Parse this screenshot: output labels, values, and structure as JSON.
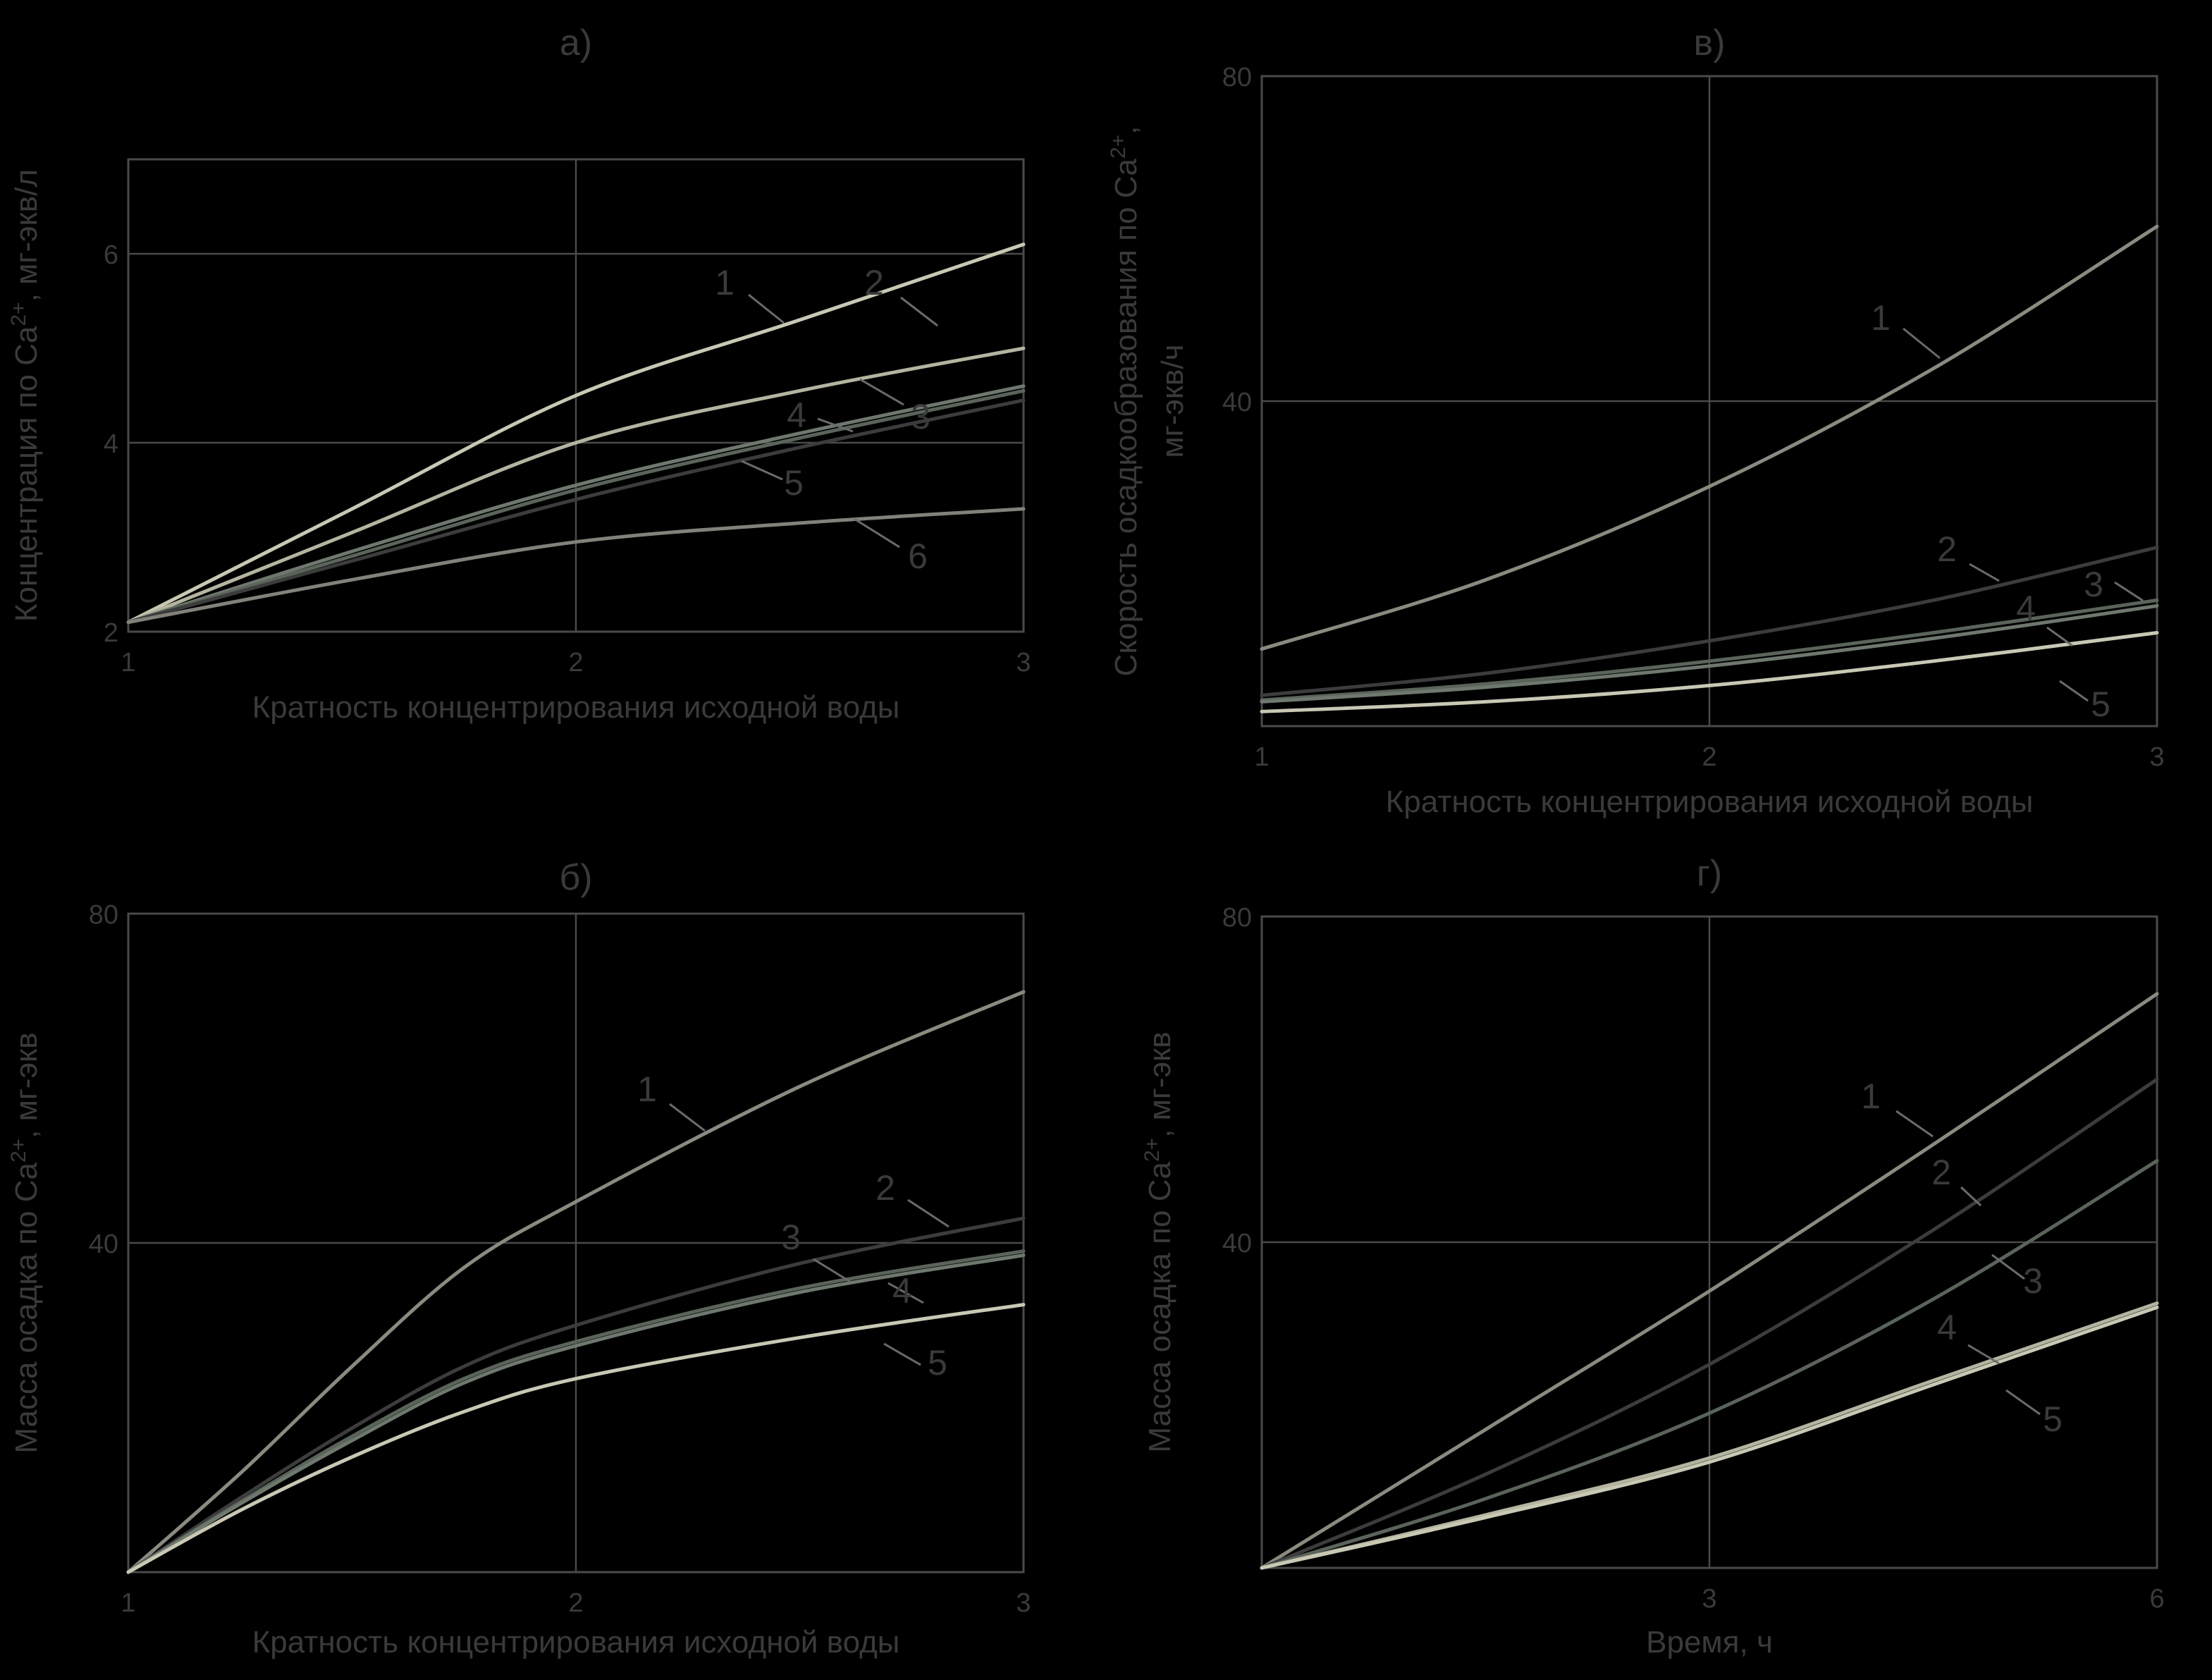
{
  "chart_data": [
    {
      "id": "a",
      "type": "line",
      "title": "а)",
      "xlabel": "Кратность концентрирования исходной воды",
      "ylabel": "Концентрация по Ca²⁺, мг-экв/л",
      "ylabel_parts": {
        "before": "Концентрация по Ca",
        "sup": "2+",
        "after": ", мг-экв/л"
      },
      "xlim": [
        1,
        3
      ],
      "ylim": [
        2,
        7
      ],
      "xticks": [
        1,
        2,
        3
      ],
      "xtick_labels": [
        "1",
        "2",
        "3"
      ],
      "yticks": [
        2,
        4,
        6
      ],
      "ytick_labels": [
        "2",
        "4",
        "6"
      ],
      "grid": true,
      "series": [
        {
          "name": "1",
          "color": "#c8c8b4",
          "x": [
            1,
            1.5,
            2,
            2.5,
            3
          ],
          "y": [
            2.1,
            3.3,
            4.5,
            5.3,
            6.1
          ]
        },
        {
          "name": "2",
          "color": "#b4b4a0",
          "x": [
            1,
            1.5,
            2,
            2.5,
            3
          ],
          "y": [
            2.1,
            3.05,
            4.0,
            4.55,
            5.0
          ]
        },
        {
          "name": "3",
          "color": "#6e786e",
          "x": [
            1,
            1.5,
            2,
            2.5,
            3
          ],
          "y": [
            2.1,
            2.85,
            3.55,
            4.1,
            4.6
          ]
        },
        {
          "name": "4",
          "color": "#5a645a",
          "x": [
            1,
            1.5,
            2,
            2.5,
            3
          ],
          "y": [
            2.1,
            2.8,
            3.5,
            4.05,
            4.55
          ]
        },
        {
          "name": "5",
          "color": "#3c3c3c",
          "x": [
            1,
            1.5,
            2,
            2.5,
            3
          ],
          "y": [
            2.1,
            2.75,
            3.4,
            3.95,
            4.45
          ]
        },
        {
          "name": "6",
          "color": "#82827a",
          "x": [
            1,
            1.5,
            2,
            2.5,
            3
          ],
          "y": [
            2.1,
            2.55,
            2.95,
            3.15,
            3.3
          ]
        }
      ]
    },
    {
      "id": "v",
      "type": "line",
      "title": "в)",
      "xlabel": "Кратность концентрирования исходной воды",
      "ylabel": "Скорость осадкообразования по Ca²⁺, мг-экв/ч",
      "ylabel_parts": {
        "before": "Скорость осадкообразования по Ca",
        "sup": "2+",
        "after": ",",
        "line2": "мг-экв/ч"
      },
      "xlim": [
        1,
        3
      ],
      "ylim": [
        0,
        80
      ],
      "xticks": [
        1,
        2,
        3
      ],
      "xtick_labels": [
        "1",
        "2",
        "3"
      ],
      "yticks": [
        40,
        80
      ],
      "ytick_labels": [
        "40",
        "80"
      ],
      "grid": true,
      "series": [
        {
          "name": "1",
          "color": "#8a8a80",
          "x": [
            1,
            1.5,
            2,
            2.5,
            3
          ],
          "y": [
            9.5,
            18,
            29.5,
            44,
            61.5
          ]
        },
        {
          "name": "2",
          "color": "#3c3c3c",
          "x": [
            1,
            1.5,
            2,
            2.5,
            3
          ],
          "y": [
            3.8,
            6.5,
            10.5,
            15.5,
            22
          ]
        },
        {
          "name": "3",
          "color": "#5a645a",
          "x": [
            1,
            1.5,
            2,
            2.5,
            3
          ],
          "y": [
            3.2,
            5.2,
            8,
            11.5,
            15.5
          ]
        },
        {
          "name": "4",
          "color": "#6e786e",
          "x": [
            1,
            1.5,
            2,
            2.5,
            3
          ],
          "y": [
            3.0,
            4.8,
            7.4,
            10.8,
            14.8
          ]
        },
        {
          "name": "5",
          "color": "#c8c8b4",
          "x": [
            1,
            1.5,
            2,
            2.5,
            3
          ],
          "y": [
            1.8,
            3.0,
            5.0,
            8.0,
            11.5
          ]
        }
      ]
    },
    {
      "id": "b",
      "type": "line",
      "title": "б)",
      "xlabel": "Кратность концентрирования исходной воды",
      "ylabel": "Масса осадка по Ca²⁺, мг-экв",
      "ylabel_parts": {
        "before": "Масса осадка по Ca",
        "sup": "2+",
        "after": ", мг-экв"
      },
      "xlim": [
        1,
        3
      ],
      "ylim": [
        0,
        80
      ],
      "xticks": [
        1,
        2,
        3
      ],
      "xtick_labels": [
        "1",
        "2",
        "3"
      ],
      "yticks": [
        40,
        80
      ],
      "ytick_labels": [
        "40",
        "80"
      ],
      "grid": true,
      "series": [
        {
          "name": "1",
          "color": "#8a8a80",
          "x": [
            1,
            1.25,
            1.5,
            1.75,
            2,
            2.5,
            3
          ],
          "y": [
            0,
            12,
            25,
            37,
            45,
            59,
            70.5
          ]
        },
        {
          "name": "2",
          "color": "#3c3c3c",
          "x": [
            1,
            1.25,
            1.5,
            1.75,
            2,
            2.5,
            3
          ],
          "y": [
            0,
            9,
            17.5,
            25,
            30,
            37.5,
            43
          ]
        },
        {
          "name": "3",
          "color": "#5a645a",
          "x": [
            1,
            1.25,
            1.5,
            1.75,
            2,
            2.5,
            3
          ],
          "y": [
            0,
            8.5,
            16.5,
            23.5,
            28,
            34.5,
            39
          ]
        },
        {
          "name": "4",
          "color": "#6e786e",
          "x": [
            1,
            1.25,
            1.5,
            1.75,
            2,
            2.5,
            3
          ],
          "y": [
            0,
            8.3,
            16,
            23,
            27.5,
            34,
            38.5
          ]
        },
        {
          "name": "5",
          "color": "#c8c8b4",
          "x": [
            1,
            1.25,
            1.5,
            1.75,
            2,
            2.5,
            3
          ],
          "y": [
            0,
            7.5,
            14,
            19.5,
            23.5,
            28.5,
            32.5
          ]
        }
      ]
    },
    {
      "id": "g",
      "type": "line",
      "title": "г)",
      "xlabel": "Время, ч",
      "ylabel": "Масса осадка по Ca²⁺, мг-экв",
      "ylabel_parts": {
        "before": "Масса осадка по Ca",
        "sup": "2+",
        "after": ", мг-экв"
      },
      "xlim": [
        0,
        6
      ],
      "ylim": [
        0,
        80
      ],
      "xticks": [
        3,
        6
      ],
      "xtick_labels": [
        "3",
        "6"
      ],
      "yticks": [
        40,
        80
      ],
      "ytick_labels": [
        "40",
        "80"
      ],
      "grid": true,
      "series": [
        {
          "name": "1",
          "color": "#8a8a80",
          "x": [
            0,
            1.5,
            3,
            4.5,
            6
          ],
          "y": [
            0,
            17,
            34,
            52,
            70.5
          ]
        },
        {
          "name": "2",
          "color": "#3c3c3c",
          "x": [
            0,
            1.5,
            3,
            4.5,
            6
          ],
          "y": [
            0,
            11.5,
            25,
            41.5,
            60
          ]
        },
        {
          "name": "3",
          "color": "#5a645a",
          "x": [
            0,
            1.5,
            3,
            4.5,
            6
          ],
          "y": [
            0,
            8.5,
            19,
            33,
            50
          ]
        },
        {
          "name": "4",
          "color": "#b4b4a0",
          "x": [
            0,
            1.5,
            3,
            4.5,
            6
          ],
          "y": [
            0,
            6.5,
            13.5,
            23,
            32.5
          ]
        },
        {
          "name": "5",
          "color": "#c8c8b4",
          "x": [
            0,
            1.5,
            3,
            4.5,
            6
          ],
          "y": [
            0,
            6.2,
            13,
            22.5,
            32
          ]
        }
      ]
    }
  ]
}
